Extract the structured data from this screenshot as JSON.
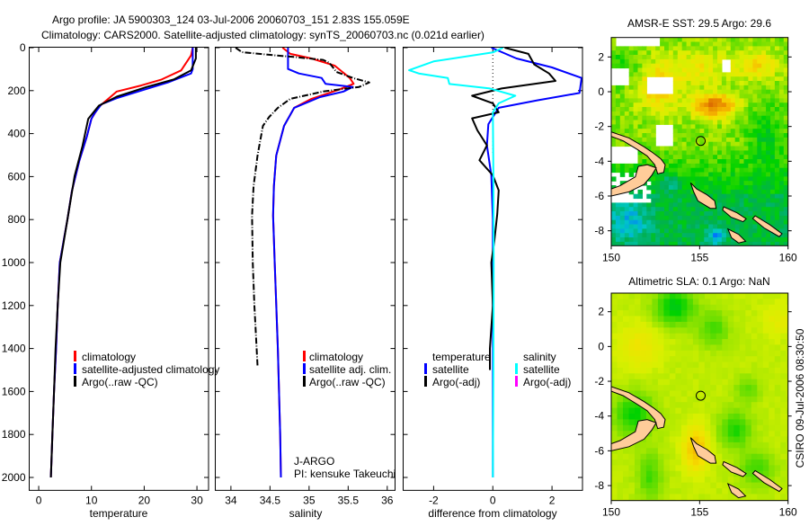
{
  "header": {
    "line1": "Argo profile: JA 5900303_124 03-Jul-2006 20060703_151 2.83S 155.059E",
    "line2": "Climatology: CARS2000. Satellite-adjusted climatology: synTS_20060703.nc (0.021d earlier)"
  },
  "side_stamp": "CSIRO 09-Jul-2006 08:30:50",
  "chart_data": [
    {
      "type": "line",
      "id": "temperature",
      "xlabel": "temperature",
      "ylabel": "",
      "xlim": [
        -1.8,
        32.2
      ],
      "ylim": [
        0,
        2060
      ],
      "y_reversed": true,
      "xticks": [
        0,
        10,
        20,
        30
      ],
      "yticks": [
        0,
        200,
        400,
        600,
        800,
        1000,
        1200,
        1400,
        1600,
        1800,
        2000
      ],
      "legend": [
        "climatology",
        "satellite-adjusted climatology",
        "Argo(..raw -QC)"
      ],
      "series": [
        {
          "name": "climatology",
          "color": "#ff0000",
          "depth": [
            0,
            36,
            106,
            148,
            176,
            204,
            240,
            275,
            331,
            415,
            527,
            667,
            800,
            1000,
            1200,
            1400,
            1600,
            1800,
            2000
          ],
          "values": [
            29.2,
            28.9,
            27.0,
            23.3,
            19.4,
            14.8,
            13.1,
            11.4,
            10.0,
            9.1,
            7.7,
            6.3,
            5.45,
            4.0,
            3.6,
            3.3,
            2.9,
            2.6,
            2.3
          ]
        },
        {
          "name": "satellite-adjusted climatology",
          "color": "#0000ff",
          "depth": [
            0,
            100,
            120,
            162,
            200,
            235,
            263,
            305,
            331,
            415,
            527,
            667,
            800,
            1000,
            1200,
            1400,
            1600,
            1800,
            2000
          ],
          "values": [
            29.2,
            29.2,
            28.9,
            24.5,
            19.4,
            14.8,
            11.9,
            10.6,
            10.0,
            9.1,
            7.7,
            6.3,
            5.45,
            4.0,
            3.6,
            3.3,
            2.9,
            2.6,
            2.3
          ]
        },
        {
          "name": "Argo(..raw -QC)",
          "color": "#000000",
          "depth": [
            0,
            50,
            106,
            148,
            183,
            228,
            270,
            331,
            457,
            597,
            800,
            1000,
            1200,
            1400,
            1600,
            1800,
            2000
          ],
          "values": [
            29.8,
            29.8,
            28.9,
            25.6,
            20.5,
            14.8,
            11.4,
            9.4,
            8.3,
            6.8,
            5.45,
            4.1,
            3.6,
            3.2,
            2.9,
            2.6,
            2.3
          ]
        }
      ]
    },
    {
      "type": "line",
      "id": "salinity",
      "xlabel": "salinity",
      "xlim": [
        33.8,
        36.1
      ],
      "ylim": [
        0,
        2060
      ],
      "y_reversed": true,
      "xticks": [
        34,
        34.5,
        35,
        35.5,
        36
      ],
      "legend": [
        "climatology",
        "satellite adj. clim.",
        "Argo(..raw -QC)"
      ],
      "annotations": [
        "J-ARGO",
        "PI: kensuke Takeuchi"
      ],
      "series": [
        {
          "name": "climatology",
          "color": "#ff0000",
          "depth": [
            0,
            29,
            50,
            84,
            141,
            168,
            197,
            238,
            280,
            364,
            502,
            644,
            782,
            1000,
            1400,
            1800,
            2000
          ],
          "values": [
            34.66,
            34.76,
            35.03,
            35.33,
            35.52,
            35.57,
            35.37,
            35.03,
            34.81,
            34.68,
            34.58,
            34.55,
            34.54,
            34.56,
            34.6,
            34.63,
            34.64
          ]
        },
        {
          "name": "satellite adj. clim.",
          "color": "#0000ff",
          "depth": [
            0,
            99,
            120,
            141,
            168,
            183,
            204,
            230,
            280,
            364,
            502,
            644,
            782,
            1000,
            1400,
            1800,
            2000
          ],
          "values": [
            34.73,
            34.73,
            34.87,
            35.16,
            35.21,
            35.56,
            35.44,
            35.14,
            34.81,
            34.68,
            34.58,
            34.55,
            34.54,
            34.56,
            34.6,
            34.63,
            34.64
          ]
        },
        {
          "name": "Argo(..raw -QC)",
          "color": "#000000",
          "depth": [
            0,
            21,
            36,
            43,
            57,
            71,
            113,
            141,
            162,
            183,
            204,
            238,
            280,
            322,
            364,
            502,
            644,
            782,
            1000,
            1200,
            1480
          ],
          "values": [
            34.06,
            34.14,
            34.57,
            34.8,
            35.18,
            35.26,
            35.35,
            35.56,
            35.77,
            35.64,
            35.18,
            34.76,
            34.6,
            34.49,
            34.41,
            34.34,
            34.29,
            34.27,
            34.28,
            34.3,
            34.34
          ]
        }
      ]
    },
    {
      "type": "line",
      "id": "difference",
      "xlabel": "difference from climatology",
      "xlim": [
        -3.03,
        3.03
      ],
      "ylim": [
        0,
        2060
      ],
      "y_reversed": true,
      "xticks": [
        -2,
        0,
        2
      ],
      "legend_headers": [
        "temperature",
        "salinity"
      ],
      "legend": [
        {
          "group": "temperature",
          "name": "satellite",
          "color": "#0000ff"
        },
        {
          "group": "temperature",
          "name": "Argo(-adj)",
          "color": "#000000"
        },
        {
          "group": "salinity",
          "name": "satellite",
          "color": "#00ffff"
        },
        {
          "group": "salinity",
          "name": "Argo(-adj)",
          "color": "#ff00ff"
        }
      ],
      "series": [
        {
          "name": "temperature satellite",
          "color": "#0000ff",
          "depth": [
            0,
            50,
            92,
            141,
            211,
            245,
            280,
            356,
            455,
            594,
            800,
            1000,
            1500,
            2000
          ],
          "values": [
            -0.05,
            0.8,
            2.0,
            3.0,
            2.93,
            1.5,
            0.2,
            -0.15,
            -0.2,
            -0.05,
            0,
            0,
            0,
            0
          ]
        },
        {
          "name": "temperature Argo(-adj)",
          "color": "#000000",
          "depth": [
            0,
            29,
            78,
            120,
            155,
            190,
            224,
            259,
            301,
            329,
            385,
            455,
            524,
            594,
            664,
            774,
            900,
            1000,
            1200,
            1400,
            1500
          ],
          "values": [
            0.4,
            1.2,
            1.4,
            1.9,
            2.12,
            0.3,
            -0.7,
            0,
            0.2,
            -0.7,
            -0.52,
            -0.2,
            -0.45,
            0,
            0.2,
            0.15,
            0.05,
            -0.05,
            0,
            -0.1,
            -0.1
          ]
        },
        {
          "name": "salinity satellite",
          "color": "#00ffff",
          "depth": [
            0,
            22,
            64,
            105,
            120,
            141,
            169,
            190,
            224,
            259,
            301,
            600,
            1000,
            1500,
            2000
          ],
          "values": [
            0.35,
            0,
            -2.0,
            -2.83,
            -2.5,
            -1.52,
            -1.47,
            -0.1,
            0.76,
            0.2,
            0,
            0.02,
            0.03,
            0.02,
            0
          ]
        }
      ]
    },
    {
      "type": "heatmap",
      "id": "sst-map",
      "title": "AMSR-E SST: 29.5 Argo: 29.6",
      "xlim": [
        150,
        160
      ],
      "ylim": [
        -8.86,
        3.12
      ],
      "xticks": [
        150,
        155,
        160
      ],
      "yticks": [
        2,
        0,
        -2,
        -4,
        -6,
        -8
      ],
      "float_position": {
        "lon": 155.059,
        "lat": -2.83
      }
    },
    {
      "type": "heatmap",
      "id": "sla-map",
      "title": "Altimetric SLA: 0.1 Argo: NaN",
      "xlim": [
        150,
        160
      ],
      "ylim": [
        -8.86,
        3.07
      ],
      "xticks": [
        150,
        155,
        160
      ],
      "yticks": [
        2,
        0,
        -2,
        -4,
        -6,
        -8
      ],
      "float_position": {
        "lon": 155.059,
        "lat": -2.83
      }
    }
  ]
}
